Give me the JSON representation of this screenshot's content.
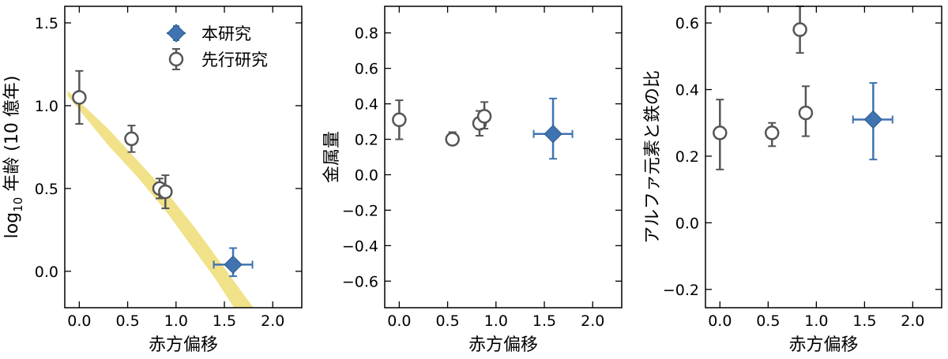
{
  "legend": {
    "this_work": "本研究",
    "previous_work": "先行研究"
  },
  "colors": {
    "this_work": "#3f74b0",
    "previous_work": "#555555",
    "band": "#f1e188"
  },
  "chart_data": [
    {
      "type": "scatter",
      "xlabel": "赤方偏移",
      "ylabel_main": "log",
      "ylabel_sub": "10",
      "ylabel_rest": " 年齢 (10 億年)",
      "xlim": [
        -0.15,
        2.3
      ],
      "ylim": [
        -0.22,
        1.6
      ],
      "xticks": [
        "0.0",
        "0.5",
        "1.0",
        "1.5",
        "2.0"
      ],
      "xtick_values": [
        0,
        0.5,
        1,
        1.5,
        2
      ],
      "yticks": [
        "0.0",
        "0.5",
        "1.0",
        "1.5"
      ],
      "ytick_values": [
        0,
        0.5,
        1,
        1.5
      ],
      "band": {
        "upper": [
          [
            -0.12,
            1.09
          ],
          [
            0.3,
            0.86
          ],
          [
            0.6,
            0.67
          ],
          [
            0.9,
            0.48
          ],
          [
            1.2,
            0.26
          ],
          [
            1.5,
            0.02
          ],
          [
            1.8,
            -0.22
          ]
        ],
        "lower": [
          [
            -0.12,
            1.06
          ],
          [
            0.3,
            0.76
          ],
          [
            0.6,
            0.57
          ],
          [
            0.9,
            0.36
          ],
          [
            1.2,
            0.12
          ],
          [
            1.4,
            -0.04
          ],
          [
            1.6,
            -0.22
          ]
        ]
      },
      "series": [
        {
          "name": "先行研究",
          "marker": "circle",
          "points": [
            {
              "x": 0.0,
              "y": 1.05,
              "ylo": 0.89,
              "yhi": 1.21
            },
            {
              "x": 0.54,
              "y": 0.8,
              "ylo": 0.72,
              "yhi": 0.88
            },
            {
              "x": 0.83,
              "y": 0.5,
              "ylo": 0.44,
              "yhi": 0.56
            },
            {
              "x": 0.89,
              "y": 0.48,
              "ylo": 0.38,
              "yhi": 0.58
            }
          ]
        },
        {
          "name": "本研究",
          "marker": "diamond",
          "points": [
            {
              "x": 1.59,
              "y": 0.04,
              "ylo": -0.03,
              "yhi": 0.14,
              "xlo": 1.39,
              "xhi": 1.79
            }
          ]
        }
      ],
      "legend_position": "top-right"
    },
    {
      "type": "scatter",
      "xlabel": "赤方偏移",
      "ylabel": "金属量",
      "xlim": [
        -0.15,
        2.3
      ],
      "ylim": [
        -0.75,
        0.95
      ],
      "xticks": [
        "0.0",
        "0.5",
        "1.0",
        "1.5",
        "2.0"
      ],
      "xtick_values": [
        0,
        0.5,
        1,
        1.5,
        2
      ],
      "yticks": [
        "−0.6",
        "−0.4",
        "−0.2",
        "0.0",
        "0.2",
        "0.4",
        "0.6",
        "0.8"
      ],
      "ytick_values": [
        -0.6,
        -0.4,
        -0.2,
        0,
        0.2,
        0.4,
        0.6,
        0.8
      ],
      "series": [
        {
          "name": "先行研究",
          "marker": "circle",
          "points": [
            {
              "x": 0.0,
              "y": 0.31,
              "ylo": 0.2,
              "yhi": 0.42
            },
            {
              "x": 0.55,
              "y": 0.2,
              "ylo": 0.17,
              "yhi": 0.24
            },
            {
              "x": 0.83,
              "y": 0.29,
              "ylo": 0.22,
              "yhi": 0.36
            },
            {
              "x": 0.88,
              "y": 0.33,
              "ylo": 0.26,
              "yhi": 0.41
            }
          ]
        },
        {
          "name": "本研究",
          "marker": "diamond",
          "points": [
            {
              "x": 1.59,
              "y": 0.23,
              "ylo": 0.09,
              "yhi": 0.43,
              "xlo": 1.39,
              "xhi": 1.79
            }
          ]
        }
      ]
    },
    {
      "type": "scatter",
      "xlabel": "赤方偏移",
      "ylabel": "アルファ元素と鉄の比",
      "xlim": [
        -0.15,
        2.3
      ],
      "ylim": [
        -0.255,
        0.65
      ],
      "xticks": [
        "0.0",
        "0.5",
        "1.0",
        "1.5",
        "2.0"
      ],
      "xtick_values": [
        0,
        0.5,
        1,
        1.5,
        2
      ],
      "yticks": [
        "−0.2",
        "0.0",
        "0.2",
        "0.4",
        "0.6"
      ],
      "ytick_values": [
        -0.2,
        0,
        0.2,
        0.4,
        0.6
      ],
      "series": [
        {
          "name": "先行研究",
          "marker": "circle",
          "points": [
            {
              "x": 0.0,
              "y": 0.27,
              "ylo": 0.16,
              "yhi": 0.37
            },
            {
              "x": 0.54,
              "y": 0.27,
              "ylo": 0.23,
              "yhi": 0.3
            },
            {
              "x": 0.83,
              "y": 0.58,
              "ylo": 0.51,
              "yhi": 0.65
            },
            {
              "x": 0.89,
              "y": 0.33,
              "ylo": 0.26,
              "yhi": 0.41
            }
          ]
        },
        {
          "name": "本研究",
          "marker": "diamond",
          "points": [
            {
              "x": 1.59,
              "y": 0.31,
              "ylo": 0.19,
              "yhi": 0.42,
              "xlo": 1.38,
              "xhi": 1.79
            }
          ]
        }
      ]
    }
  ]
}
